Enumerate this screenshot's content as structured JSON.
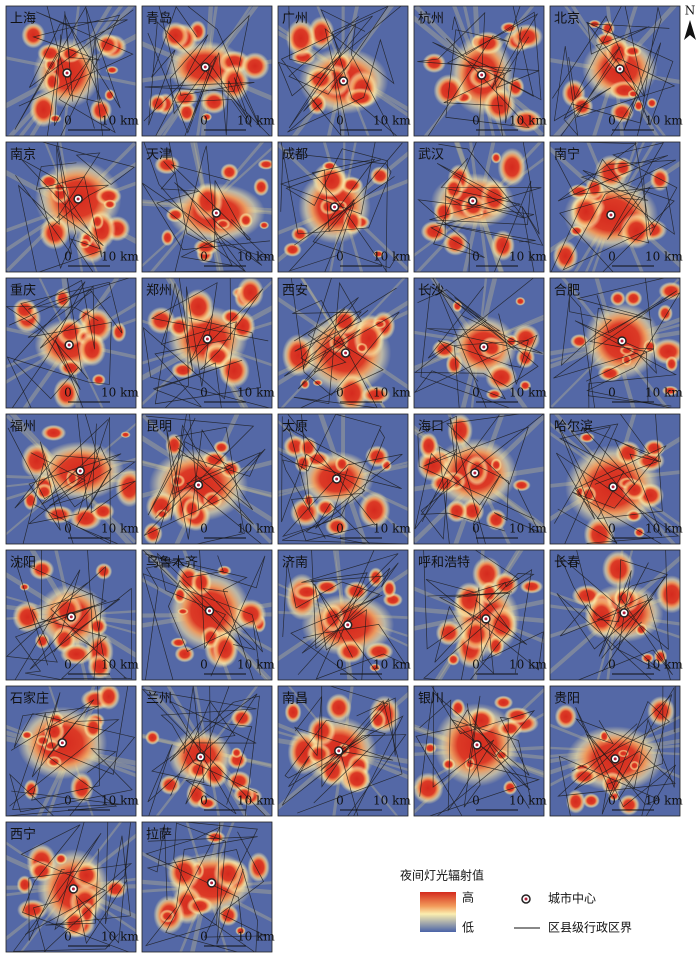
{
  "cities": [
    "上海",
    "青岛",
    "广州",
    "杭州",
    "北京",
    "南京",
    "天津",
    "成都",
    "武汉",
    "南宁",
    "重庆",
    "郑州",
    "西安",
    "长沙",
    "合肥",
    "福州",
    "昆明",
    "太原",
    "海口",
    "哈尔滨",
    "沈阳",
    "乌鲁木齐",
    "济南",
    "呼和浩特",
    "长春",
    "石家庄",
    "兰州",
    "南昌",
    "银川",
    "贵阳",
    "西宁",
    "拉萨"
  ],
  "scale_bar": {
    "zero": "0",
    "length": "10 km"
  },
  "north": "N",
  "legend": {
    "title": "夜间灯光辐射值",
    "high": "高",
    "low": "低",
    "city_center": "城市中心",
    "boundary": "区县级行政区界"
  }
}
